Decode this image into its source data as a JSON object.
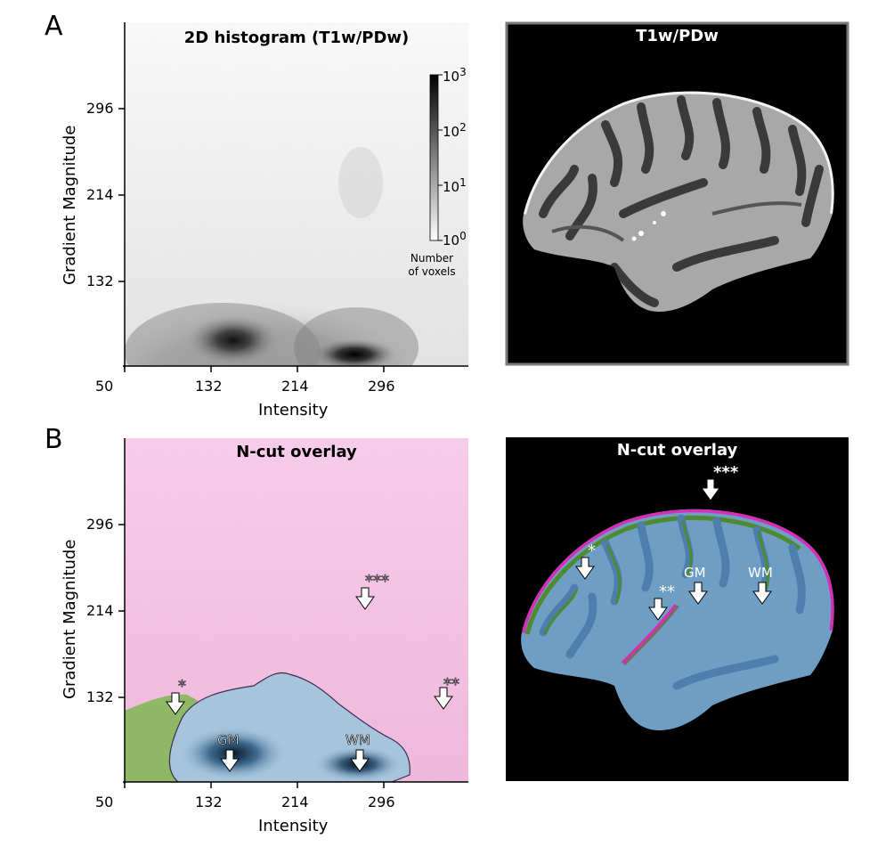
{
  "figure": {
    "panel_a_letter": "A",
    "panel_b_letter": "B"
  },
  "chart_data": [
    {
      "type": "heatmap",
      "title": "2D histogram (T1w/PDw)",
      "xlabel": "Intensity",
      "ylabel": "Gradient Magnitude",
      "x_ticks": [
        "50",
        "132",
        "214",
        "296"
      ],
      "y_ticks": [
        "132",
        "214",
        "296"
      ],
      "colorbar": {
        "ticks_exp": [
          "0",
          "1",
          "2",
          "3"
        ],
        "tick_base": "10",
        "label_line1": "Number",
        "label_line2": "of voxels",
        "scale": "log"
      }
    },
    {
      "type": "heatmap",
      "title": "N-cut overlay",
      "xlabel": "Intensity",
      "ylabel": "Gradient Magnitude",
      "x_ticks": [
        "50",
        "132",
        "214",
        "296"
      ],
      "y_ticks": [
        "132",
        "214",
        "296"
      ],
      "annotations": [
        "*",
        "**",
        "***",
        "GM",
        "WM"
      ]
    }
  ],
  "images": {
    "mri_title": "T1w/PDw",
    "overlay_title": "N-cut overlay",
    "overlay_labels": [
      "*",
      "**",
      "***",
      "GM",
      "WM"
    ]
  },
  "colors": {
    "pink": "#f7c8e8",
    "green": "#8fb866",
    "blue": "#6f9ec4",
    "dark_blue": "#0c2236",
    "magenta": "#d62fb7"
  }
}
